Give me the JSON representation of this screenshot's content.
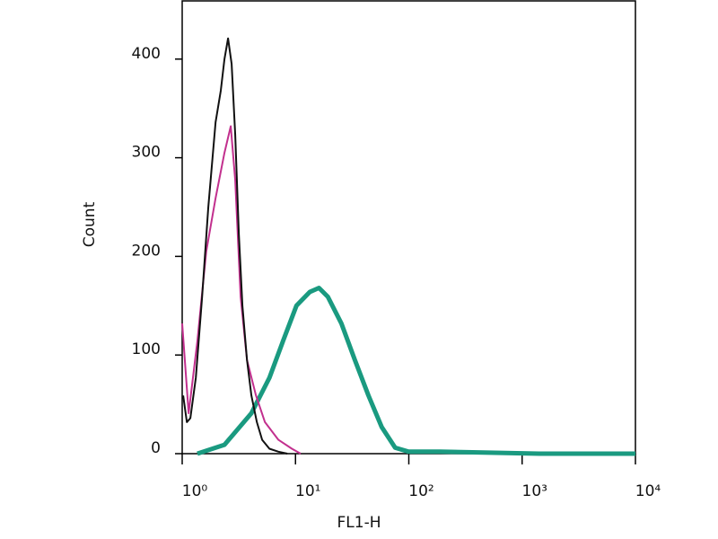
{
  "chart_data": {
    "type": "line",
    "x_label": "FL1-H",
    "y_label": "Count",
    "log_x": true,
    "xlim": [
      1,
      10000
    ],
    "xticks": [
      {
        "value": 1,
        "label": "10⁰"
      },
      {
        "value": 10,
        "label": "10¹"
      },
      {
        "value": 100,
        "label": "10²"
      },
      {
        "value": 1000,
        "label": "10³"
      },
      {
        "value": 10000,
        "label": "10⁴"
      }
    ],
    "ylim": [
      0,
      459
    ],
    "yticks": [
      0,
      100,
      200,
      300,
      400
    ],
    "series": [
      {
        "color": "#111111",
        "width": 2,
        "x": [
          1.02,
          1.1,
          1.18,
          1.32,
          1.5,
          1.7,
          1.97,
          2.19,
          2.36,
          2.54,
          2.73,
          2.94,
          3.16,
          3.4,
          3.73,
          4.08,
          4.56,
          5.08,
          5.89,
          7.06,
          8.48
        ],
        "values": [
          59,
          32,
          36,
          77,
          159,
          250,
          336,
          368,
          400,
          421,
          395,
          323,
          223,
          150,
          95,
          59,
          32,
          14,
          5,
          2,
          0
        ]
      },
      {
        "color": "#c2308e",
        "width": 2,
        "x": [
          1.0,
          1.14,
          1.36,
          1.63,
          1.97,
          2.36,
          2.68,
          2.94,
          3.28,
          3.73,
          4.48,
          5.37,
          7.06,
          9.29,
          11.1
        ],
        "values": [
          132,
          41,
          114,
          205,
          259,
          305,
          332,
          277,
          159,
          95,
          59,
          32,
          14,
          5,
          0
        ]
      },
      {
        "color": "#1a9a80",
        "width": 5,
        "x": [
          1.36,
          2.36,
          4.08,
          5.89,
          7.76,
          10.2,
          13.4,
          16.1,
          19.3,
          25.4,
          33.4,
          44.0,
          57.7,
          75.8,
          99.6,
          189,
          1418,
          10000
        ],
        "values": [
          0,
          9,
          41,
          77,
          114,
          150,
          164,
          168,
          159,
          132,
          95,
          59,
          27,
          6,
          2,
          2,
          0,
          0
        ]
      }
    ]
  }
}
